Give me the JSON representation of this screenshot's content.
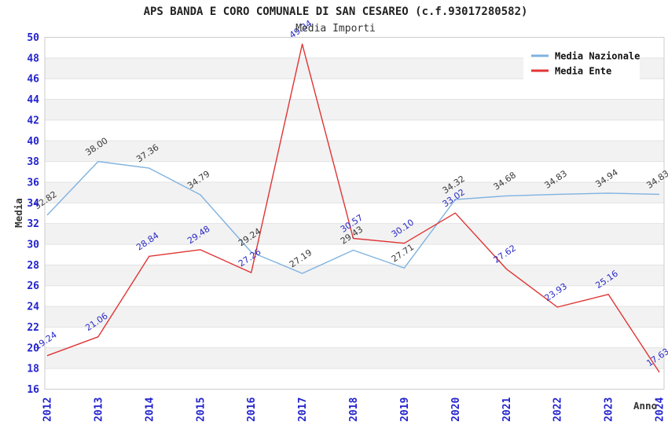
{
  "title": "APS BANDA E CORO COMUNALE DI SAN CESAREO (c.f.93017280582)",
  "subtitle": "Media Importi",
  "chart_data": {
    "type": "line",
    "x": [
      "2012",
      "2013",
      "2014",
      "2015",
      "2016",
      "2017",
      "2018",
      "2019",
      "2020",
      "2021",
      "2022",
      "2023",
      "2024"
    ],
    "series": [
      {
        "name": "Media Nazionale",
        "color": "#7fb2e0",
        "label_color": "#3a3a3a",
        "values": [
          32.82,
          38.0,
          37.36,
          34.79,
          29.24,
          27.19,
          29.43,
          27.71,
          34.32,
          34.68,
          34.83,
          34.94,
          34.83
        ],
        "labels": [
          "32.82",
          "38.00",
          "37.36",
          "34.79",
          "29.24",
          "27.19",
          "29.43",
          "27.71",
          "34.32",
          "34.68",
          "34.83",
          "34.94",
          "34.83"
        ]
      },
      {
        "name": "Media Ente",
        "color": "#e03434",
        "label_color": "#2a2ac8",
        "values": [
          19.24,
          21.06,
          28.84,
          29.48,
          27.26,
          49.34,
          30.57,
          30.1,
          33.02,
          27.62,
          23.93,
          25.16,
          17.63
        ],
        "labels": [
          "19.24",
          "21.06",
          "28.84",
          "29.48",
          "27.26",
          "49.34",
          "30.57",
          "30.10",
          "33.02",
          "27.62",
          "23.93",
          "25.16",
          "17.63"
        ]
      }
    ],
    "xlabel": "Anno",
    "ylabel": "Media",
    "ylim": [
      16,
      50
    ],
    "ytick_step": 2,
    "grid": "horizontal-bands",
    "legend_position": "top-right",
    "colors": {
      "band_white": "#ffffff",
      "band_gray": "#f2f2f2",
      "gridline": "#e2e2e2",
      "plot_border": "#cccccc",
      "axis_tick_blue": "#2323cd",
      "legend_bg": "#ffffff"
    }
  }
}
